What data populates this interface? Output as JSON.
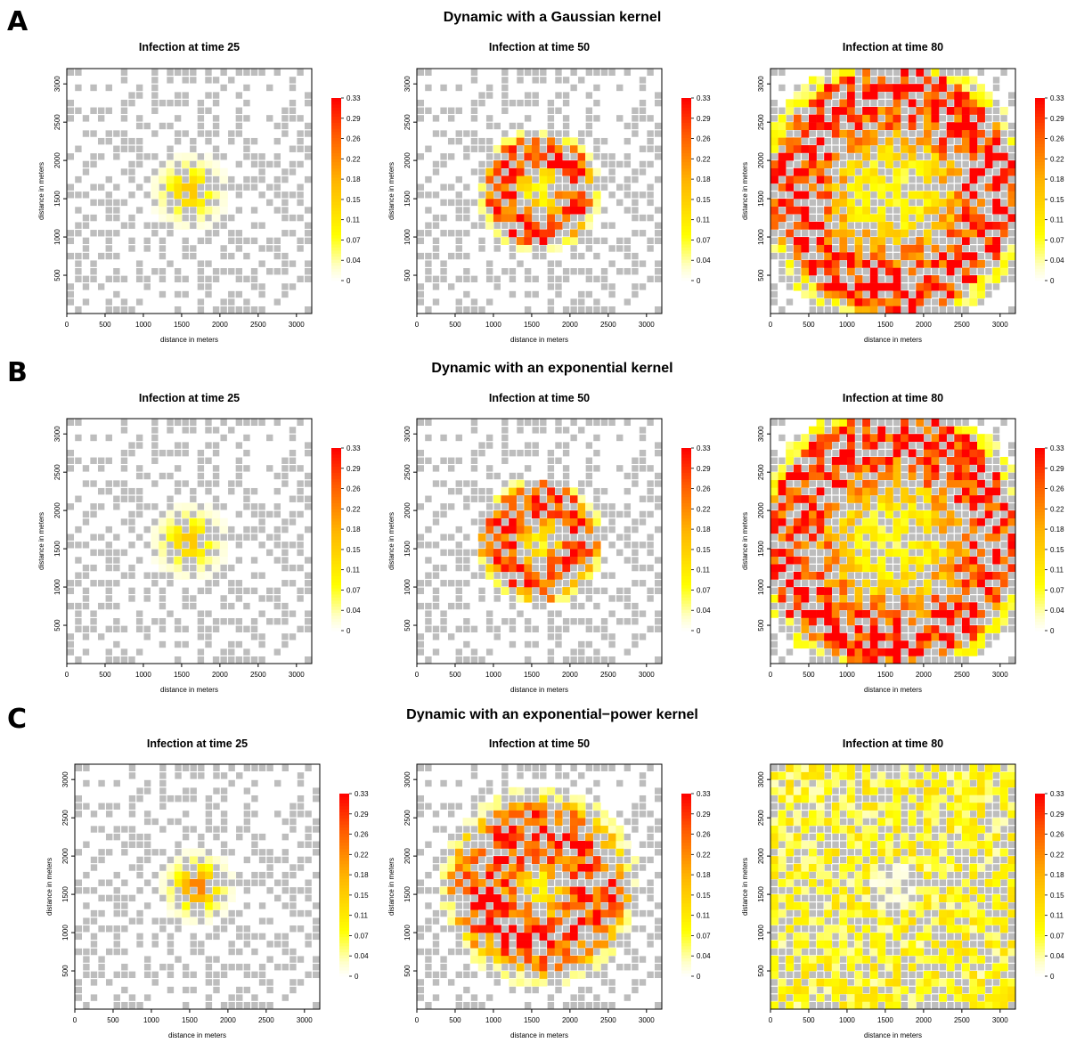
{
  "figure": {
    "rows": [
      {
        "letter": "A",
        "title": "Dynamic with a Gaussian kernel"
      },
      {
        "letter": "B",
        "title": "Dynamic with an exponential kernel"
      },
      {
        "letter": "C",
        "title": "Dynamic with an  exponential−power kernel"
      }
    ],
    "columns": [
      "Infection at time 25",
      "Infection at time 50",
      "Infection at time 80"
    ],
    "xlabel": "distance in meters",
    "ylabel": "distance in meters",
    "x_ticks": [
      "0",
      "500",
      "1000",
      "1500",
      "2000",
      "2500",
      "3000"
    ],
    "y_ticks": [
      "500",
      "1000",
      "1500",
      "2000",
      "2500",
      "3000"
    ],
    "colorbar_ticks": [
      "0",
      "0.04",
      "0.07",
      "0.11",
      "0.15",
      "0.18",
      "0.22",
      "0.26",
      "0.29",
      "0.33"
    ],
    "colors": {
      "empty_cell": "#bdbdbd",
      "high": "#ff0000",
      "mid": "#ffb300",
      "low": "#ffff00",
      "zero": "#ffffff"
    }
  },
  "chart_data": [
    {
      "type": "heatmap",
      "title": "Infection at time 25",
      "panel": "A",
      "xlabel": "distance in meters",
      "ylabel": "distance in meters",
      "xlim": [
        0,
        3200
      ],
      "ylim": [
        0,
        3200
      ],
      "colorbar_range": [
        0,
        0.33
      ],
      "seed": 11,
      "epicenter": [
        1600,
        1600
      ],
      "spread": 220,
      "peak": 0.16,
      "pattern": "blob"
    },
    {
      "type": "heatmap",
      "title": "Infection at time 50",
      "panel": "A",
      "xlabel": "distance in meters",
      "ylabel": "distance in meters",
      "xlim": [
        0,
        3200
      ],
      "ylim": [
        0,
        3200
      ],
      "colorbar_range": [
        0,
        0.33
      ],
      "seed": 12,
      "epicenter": [
        1600,
        1600
      ],
      "ring_radius": 500,
      "spread": 800,
      "peak": 0.33,
      "pattern": "ring"
    },
    {
      "type": "heatmap",
      "title": "Infection at time 80",
      "panel": "A",
      "xlabel": "distance in meters",
      "ylabel": "distance in meters",
      "xlim": [
        0,
        3200
      ],
      "ylim": [
        0,
        3200
      ],
      "colorbar_range": [
        0,
        0.33
      ],
      "seed": 13,
      "epicenter": [
        1600,
        1600
      ],
      "ring_radius": 1300,
      "spread": 1800,
      "peak": 0.33,
      "pattern": "ring"
    },
    {
      "type": "heatmap",
      "title": "Infection at time 25",
      "panel": "B",
      "xlabel": "distance in meters",
      "ylabel": "distance in meters",
      "xlim": [
        0,
        3200
      ],
      "ylim": [
        0,
        3200
      ],
      "colorbar_range": [
        0,
        0.33
      ],
      "seed": 21,
      "epicenter": [
        1600,
        1600
      ],
      "spread": 220,
      "peak": 0.16,
      "pattern": "blob"
    },
    {
      "type": "heatmap",
      "title": "Infection at time 50",
      "panel": "B",
      "xlabel": "distance in meters",
      "ylabel": "distance in meters",
      "xlim": [
        0,
        3200
      ],
      "ylim": [
        0,
        3200
      ],
      "colorbar_range": [
        0,
        0.33
      ],
      "seed": 22,
      "epicenter": [
        1600,
        1600
      ],
      "ring_radius": 500,
      "spread": 850,
      "peak": 0.33,
      "pattern": "ring"
    },
    {
      "type": "heatmap",
      "title": "Infection at time 80",
      "panel": "B",
      "xlabel": "distance in meters",
      "ylabel": "distance in meters",
      "xlim": [
        0,
        3200
      ],
      "ylim": [
        0,
        3200
      ],
      "colorbar_range": [
        0,
        0.33
      ],
      "seed": 23,
      "epicenter": [
        1600,
        1600
      ],
      "ring_radius": 1350,
      "spread": 1850,
      "peak": 0.33,
      "pattern": "ring"
    },
    {
      "type": "heatmap",
      "title": "Infection at time 25",
      "panel": "C",
      "xlabel": "distance in meters",
      "ylabel": "distance in meters",
      "xlim": [
        0,
        3200
      ],
      "ylim": [
        0,
        3200
      ],
      "colorbar_range": [
        0,
        0.33
      ],
      "seed": 31,
      "epicenter": [
        1600,
        1600
      ],
      "spread": 200,
      "peak": 0.24,
      "pattern": "blob"
    },
    {
      "type": "heatmap",
      "title": "Infection at time 50",
      "panel": "C",
      "xlabel": "distance in meters",
      "ylabel": "distance in meters",
      "xlim": [
        0,
        3200
      ],
      "ylim": [
        0,
        3200
      ],
      "colorbar_range": [
        0,
        0.33
      ],
      "seed": 32,
      "epicenter": [
        1600,
        1600
      ],
      "ring_radius": 700,
      "spread": 1300,
      "peak": 0.33,
      "pattern": "ring"
    },
    {
      "type": "heatmap",
      "title": "Infection at time 80",
      "panel": "C",
      "xlabel": "distance in meters",
      "ylabel": "distance in meters",
      "xlim": [
        0,
        3200
      ],
      "ylim": [
        0,
        3200
      ],
      "colorbar_range": [
        0,
        0.33
      ],
      "seed": 33,
      "epicenter": [
        1600,
        1600
      ],
      "ring_radius": 1500,
      "spread": 2200,
      "peak": 0.2,
      "pattern": "diffuse"
    }
  ]
}
